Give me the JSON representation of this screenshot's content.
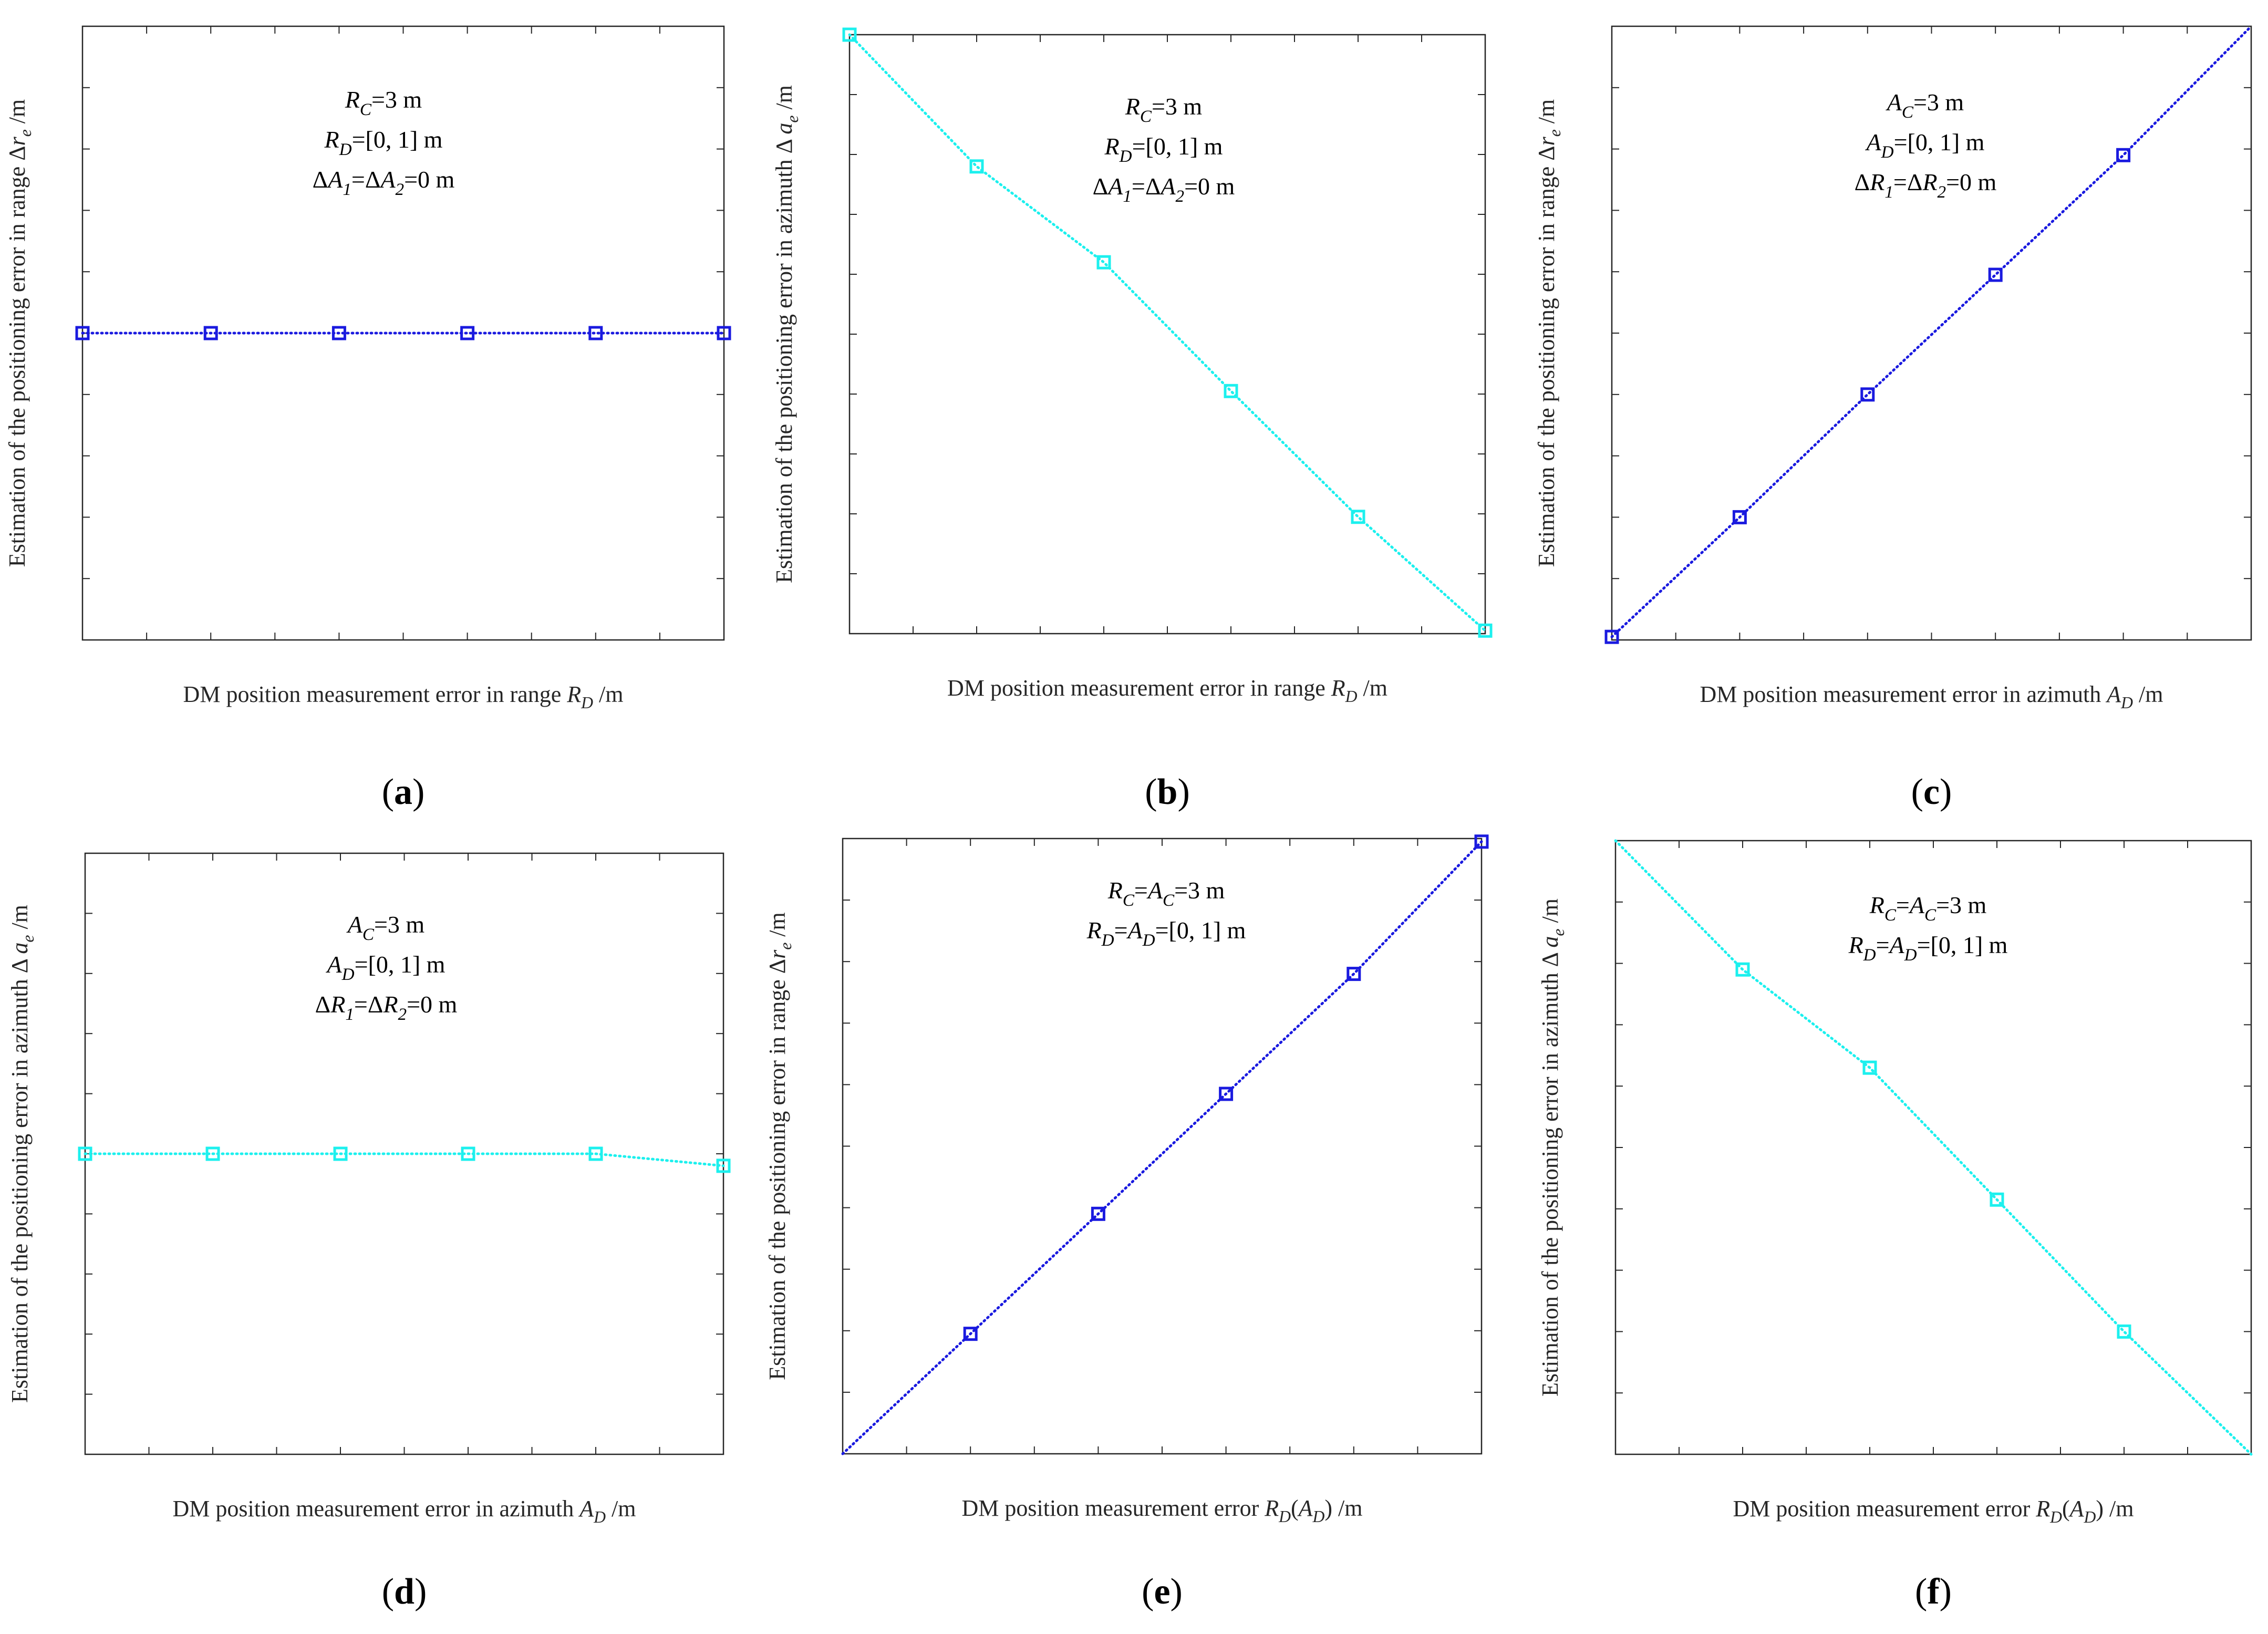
{
  "colors": {
    "blue": "#1a1adf",
    "cyan": "#1cf0ee",
    "axis": "#262626"
  },
  "chart_data": [
    {
      "id": "a",
      "type": "line",
      "panel_label": "a",
      "x": [
        0,
        0.2,
        0.4,
        0.6,
        0.8,
        1
      ],
      "series": [
        {
          "name": "range error",
          "color_key": "blue",
          "values": [
            3,
            3,
            3,
            3,
            3,
            3
          ]
        }
      ],
      "xlim": [
        0,
        1
      ],
      "ylim": [
        2.5,
        3.5
      ],
      "xticks": [
        0,
        0.1,
        0.2,
        0.3,
        0.4,
        0.5,
        0.6,
        0.7,
        0.8,
        0.9,
        1
      ],
      "yticks": [
        2.5,
        2.6,
        2.7,
        2.8,
        2.9,
        3,
        3.1,
        3.2,
        3.3,
        3.4,
        3.5
      ],
      "xlabel": {
        "text": "DM position measurement error in range ",
        "var": "R",
        "sub": "D",
        "unit": " /m"
      },
      "ylabel": {
        "text": "Estimation of the positioning error in range Δ",
        "var": "r",
        "sub": "e",
        "unit": " /m"
      },
      "annotation": [
        [
          [
            "R",
            "i"
          ],
          [
            "C",
            "sub"
          ],
          [
            "=3 m",
            "n"
          ]
        ],
        [
          [
            "R",
            "i"
          ],
          [
            "D",
            "sub"
          ],
          [
            "=[0, 1] m",
            "n"
          ]
        ],
        [
          [
            "Δ",
            "n"
          ],
          [
            "A",
            "i"
          ],
          [
            "1",
            "sub"
          ],
          [
            "=Δ",
            "n"
          ],
          [
            "A",
            "i"
          ],
          [
            "2",
            "sub"
          ],
          [
            "=0 m",
            "n"
          ]
        ]
      ]
    },
    {
      "id": "b",
      "type": "line",
      "panel_label": "b",
      "x": [
        0,
        0.2,
        0.4,
        0.6,
        0.8,
        1
      ],
      "series": [
        {
          "name": "azimuth error",
          "color_key": "cyan",
          "values": [
            0,
            -0.22,
            -0.38,
            -0.595,
            -0.805,
            -0.995
          ]
        }
      ],
      "xlim": [
        0,
        1
      ],
      "ylim": [
        -1,
        0
      ],
      "xticks": [
        0,
        0.1,
        0.2,
        0.3,
        0.4,
        0.5,
        0.6,
        0.7,
        0.8,
        0.9,
        1
      ],
      "yticks": [
        -1,
        -0.9,
        -0.8,
        -0.7,
        -0.6,
        -0.5,
        -0.4,
        -0.3,
        -0.2,
        -0.1,
        0
      ],
      "xlabel": {
        "text": "DM position measurement error in range ",
        "var": "R",
        "sub": "D",
        "unit": " /m"
      },
      "ylabel": {
        "text": "Estimation of the positioning error in azimuth Δ ",
        "var": "a",
        "sub": "e",
        "unit": " /m"
      },
      "annotation": [
        [
          [
            "R",
            "i"
          ],
          [
            "C",
            "sub"
          ],
          [
            "=3 m",
            "n"
          ]
        ],
        [
          [
            "R",
            "i"
          ],
          [
            "D",
            "sub"
          ],
          [
            "=[0, 1] m",
            "n"
          ]
        ],
        [
          [
            "Δ",
            "n"
          ],
          [
            "A",
            "i"
          ],
          [
            "1",
            "sub"
          ],
          [
            "=Δ",
            "n"
          ],
          [
            "A",
            "i"
          ],
          [
            "2",
            "sub"
          ],
          [
            "=0 m",
            "n"
          ]
        ]
      ]
    },
    {
      "id": "c",
      "type": "line",
      "panel_label": "c",
      "x": [
        0,
        0.2,
        0.4,
        0.6,
        0.8,
        1
      ],
      "series": [
        {
          "name": "range error",
          "color_key": "blue",
          "values": [
            0.005,
            0.2,
            0.4,
            0.595,
            0.79,
            1
          ]
        }
      ],
      "marker_count": 5,
      "xlim": [
        0,
        1
      ],
      "ylim": [
        0,
        1
      ],
      "xticks": [
        0,
        0.1,
        0.2,
        0.3,
        0.4,
        0.5,
        0.6,
        0.7,
        0.8,
        0.9,
        1
      ],
      "yticks": [
        0,
        0.1,
        0.2,
        0.3,
        0.4,
        0.5,
        0.6,
        0.7,
        0.8,
        0.9,
        1
      ],
      "xlabel": {
        "text": "DM position measurement error in azimuth ",
        "var": "A",
        "sub": "D",
        "unit": " /m"
      },
      "ylabel": {
        "text": "Estimation of the positioning error in range Δ",
        "var": "r",
        "sub": "e",
        "unit": " /m"
      },
      "annotation": [
        [
          [
            "A",
            "i"
          ],
          [
            "C",
            "sub"
          ],
          [
            "=3 m",
            "n"
          ]
        ],
        [
          [
            "A",
            "i"
          ],
          [
            "D",
            "sub"
          ],
          [
            "=[0, 1] m",
            "n"
          ]
        ],
        [
          [
            "Δ",
            "n"
          ],
          [
            "R",
            "i"
          ],
          [
            "1",
            "sub"
          ],
          [
            "=Δ",
            "n"
          ],
          [
            "R",
            "i"
          ],
          [
            "2",
            "sub"
          ],
          [
            "=0 m",
            "n"
          ]
        ]
      ]
    },
    {
      "id": "d",
      "type": "line",
      "panel_label": "d",
      "x": [
        0,
        0.2,
        0.4,
        0.6,
        0.8,
        1
      ],
      "series": [
        {
          "name": "azimuth error",
          "color_key": "cyan",
          "values": [
            3,
            3,
            3,
            3,
            3,
            2.98
          ]
        }
      ],
      "xlim": [
        0,
        1
      ],
      "ylim": [
        2.5,
        3.5
      ],
      "xticks": [
        0,
        0.1,
        0.2,
        0.3,
        0.4,
        0.5,
        0.6,
        0.7,
        0.8,
        0.9,
        1
      ],
      "yticks": [
        2.5,
        2.6,
        2.7,
        2.8,
        2.9,
        3,
        3.1,
        3.2,
        3.3,
        3.4,
        3.5
      ],
      "xlabel": {
        "text": "DM position measurement error in azimuth ",
        "var": "A",
        "sub": "D",
        "unit": " /m"
      },
      "ylabel": {
        "text": "Estimation of the positioning error in azimuth Δ ",
        "var": "a",
        "sub": "e",
        "unit": " /m"
      },
      "annotation": [
        [
          [
            "A",
            "i"
          ],
          [
            "C",
            "sub"
          ],
          [
            "=3 m",
            "n"
          ]
        ],
        [
          [
            "A",
            "i"
          ],
          [
            "D",
            "sub"
          ],
          [
            "=[0, 1] m",
            "n"
          ]
        ],
        [
          [
            "Δ",
            "n"
          ],
          [
            "R",
            "i"
          ],
          [
            "1",
            "sub"
          ],
          [
            "=Δ",
            "n"
          ],
          [
            "R",
            "i"
          ],
          [
            "2",
            "sub"
          ],
          [
            "=0 m",
            "n"
          ]
        ]
      ]
    },
    {
      "id": "e",
      "type": "line",
      "panel_label": "e",
      "x": [
        0,
        0.2,
        0.4,
        0.6,
        0.8,
        1
      ],
      "series": [
        {
          "name": "range error",
          "color_key": "blue",
          "values": [
            3,
            3.195,
            3.39,
            3.585,
            3.78,
            3.995
          ]
        }
      ],
      "marker_from": 1,
      "xlim": [
        0,
        1
      ],
      "ylim": [
        3,
        4
      ],
      "xticks": [
        0,
        0.1,
        0.2,
        0.3,
        0.4,
        0.5,
        0.6,
        0.7,
        0.8,
        0.9,
        1
      ],
      "yticks": [
        3,
        3.1,
        3.2,
        3.3,
        3.4,
        3.5,
        3.6,
        3.7,
        3.8,
        3.9,
        4
      ],
      "xlabel": {
        "text": "DM position measurement error ",
        "var": "R",
        "sub": "D",
        "unit": "(",
        "var2": "A",
        "sub2": "D",
        "unit2": ") /m"
      },
      "ylabel": {
        "text": "Estimation of the positioning error in range Δ",
        "var": "r",
        "sub": "e",
        "unit": " /m"
      },
      "annotation": [
        [
          [
            "R",
            "i"
          ],
          [
            "C",
            "sub"
          ],
          [
            "=",
            "n"
          ],
          [
            "A",
            "i"
          ],
          [
            "C",
            "sub"
          ],
          [
            "=3 m",
            "n"
          ]
        ],
        [
          [
            "R",
            "i"
          ],
          [
            "D",
            "sub"
          ],
          [
            "=",
            "n"
          ],
          [
            "A",
            "i"
          ],
          [
            "D",
            "sub"
          ],
          [
            "=[0, 1] m",
            "n"
          ]
        ]
      ]
    },
    {
      "id": "f",
      "type": "line",
      "panel_label": "f",
      "x": [
        0,
        0.2,
        0.4,
        0.6,
        0.8,
        1
      ],
      "series": [
        {
          "name": "azimuth error",
          "color_key": "cyan",
          "values": [
            3,
            2.79,
            2.63,
            2.415,
            2.2,
            2
          ]
        }
      ],
      "marker_from": 1,
      "marker_count": 4,
      "xlim": [
        0,
        1
      ],
      "ylim": [
        2,
        3
      ],
      "xticks": [
        0,
        0.1,
        0.2,
        0.3,
        0.4,
        0.5,
        0.6,
        0.7,
        0.8,
        0.9,
        1
      ],
      "yticks": [
        2,
        2.1,
        2.2,
        2.3,
        2.4,
        2.5,
        2.6,
        2.7,
        2.8,
        2.9,
        3
      ],
      "xlabel": {
        "text": "DM position measurement error ",
        "var": "R",
        "sub": "D",
        "unit": "(",
        "var2": "A",
        "sub2": "D",
        "unit2": ") /m"
      },
      "ylabel": {
        "text": "Estimation of the positioning error in azimuth Δ ",
        "var": "a",
        "sub": "e",
        "unit": " /m"
      },
      "annotation": [
        [
          [
            "R",
            "i"
          ],
          [
            "C",
            "sub"
          ],
          [
            "=",
            "n"
          ],
          [
            "A",
            "i"
          ],
          [
            "C",
            "sub"
          ],
          [
            "=3 m",
            "n"
          ]
        ],
        [
          [
            "R",
            "i"
          ],
          [
            "D",
            "sub"
          ],
          [
            "=",
            "n"
          ],
          [
            "A",
            "i"
          ],
          [
            "D",
            "sub"
          ],
          [
            "=[0, 1] m",
            "n"
          ]
        ]
      ]
    }
  ]
}
